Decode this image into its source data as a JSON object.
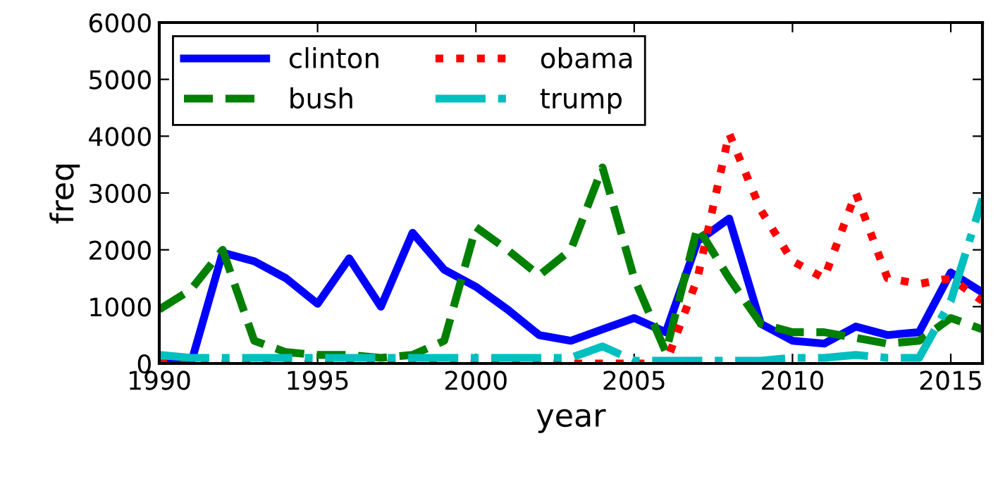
{
  "chart_data": {
    "type": "line",
    "xlabel": "year",
    "ylabel": "freq",
    "x": [
      1990,
      1991,
      1992,
      1993,
      1994,
      1995,
      1996,
      1997,
      1998,
      1999,
      2000,
      2001,
      2002,
      2003,
      2004,
      2005,
      2006,
      2007,
      2008,
      2009,
      2010,
      2011,
      2012,
      2013,
      2014,
      2015,
      2016
    ],
    "series": [
      {
        "name": "clinton",
        "color": "#0000ff",
        "line_style": "solid",
        "values": [
          0,
          0,
          1950,
          1800,
          1500,
          1050,
          1850,
          1000,
          2300,
          1650,
          1350,
          950,
          500,
          400,
          600,
          800,
          550,
          2150,
          2550,
          700,
          400,
          350,
          650,
          500,
          550,
          1600,
          1250
        ]
      },
      {
        "name": "bush",
        "color": "#008000",
        "line_style": "dashed",
        "values": [
          950,
          1300,
          2000,
          400,
          200,
          150,
          150,
          100,
          150,
          400,
          2400,
          2000,
          1550,
          2000,
          3450,
          1500,
          200,
          2400,
          1500,
          700,
          550,
          550,
          450,
          350,
          400,
          800,
          600
        ]
      },
      {
        "name": "obama",
        "color": "#ff0000",
        "line_style": "dotted",
        "values": [
          0,
          0,
          0,
          0,
          0,
          0,
          0,
          0,
          0,
          0,
          0,
          0,
          0,
          0,
          0,
          0,
          0,
          1500,
          4050,
          2700,
          1800,
          1500,
          3000,
          1500,
          1400,
          1500,
          1100
        ]
      },
      {
        "name": "trump",
        "color": "#00bfbf",
        "line_style": "dashdot",
        "values": [
          150,
          100,
          100,
          100,
          100,
          100,
          100,
          100,
          100,
          100,
          100,
          100,
          100,
          100,
          300,
          50,
          50,
          50,
          50,
          50,
          100,
          100,
          150,
          100,
          100,
          1100,
          2900
        ]
      }
    ],
    "xlim": [
      1990,
      2016
    ],
    "xticks": [
      1990,
      1995,
      2000,
      2005,
      2010,
      2015
    ],
    "ylim": [
      0,
      6000
    ],
    "yticks": [
      0,
      1000,
      2000,
      3000,
      4000,
      5000,
      6000
    ],
    "grid": false,
    "legend": "top left",
    "marker": "none"
  }
}
